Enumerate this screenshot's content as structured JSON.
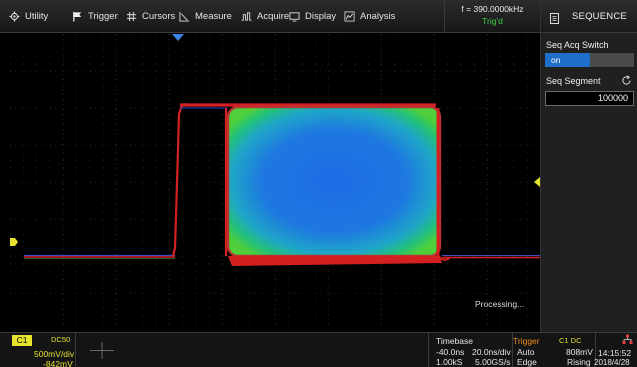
{
  "menu": {
    "items": [
      {
        "label": "Utility",
        "icon": "gear-icon"
      },
      {
        "label": "Trigger",
        "icon": "flag-icon"
      },
      {
        "label": "Cursors",
        "icon": "hash-icon"
      },
      {
        "label": "Measure",
        "icon": "measure-icon"
      },
      {
        "label": "Acquire",
        "icon": "acquire-icon"
      },
      {
        "label": "Display",
        "icon": "monitor-icon"
      },
      {
        "label": "Analysis",
        "icon": "analysis-icon"
      }
    ]
  },
  "trigger_info": {
    "frequency": "f = 390.0000kHz",
    "state": "Trig'd"
  },
  "panel": {
    "title": "SEQUENCE",
    "icon": "document-icon",
    "seq_acq_switch_label": "Seq Acq Switch",
    "seq_acq_switch_value": "on",
    "seq_segment_label": "Seq Segment",
    "seq_segment_value": "100000"
  },
  "waveform": {
    "status": "Processing...",
    "channel_color": "#e7e22c"
  },
  "channel": {
    "name": "C1",
    "coupling": "DC50",
    "scale": "500mV/div",
    "offset": "-842mV"
  },
  "timebase": {
    "label": "Timebase",
    "delay": "-40.0ns",
    "scale": "20.0ns/div",
    "points": "1.00kS",
    "sample_rate": "5.00GS/s"
  },
  "trigger": {
    "label": "Trigger",
    "source": "C1 DC",
    "mode": "Auto",
    "level": "808mV",
    "type": "Edge",
    "slope": "Rising"
  },
  "clock": {
    "time": "14:15:52",
    "date": "2018/4/28"
  },
  "colors": {
    "accent_blue": "#1f6ec9",
    "trig_green": "#3fd048",
    "channel_yellow": "#e7e22c",
    "trigger_orange": "#f08a1c",
    "persistence_red": "#d42020"
  }
}
